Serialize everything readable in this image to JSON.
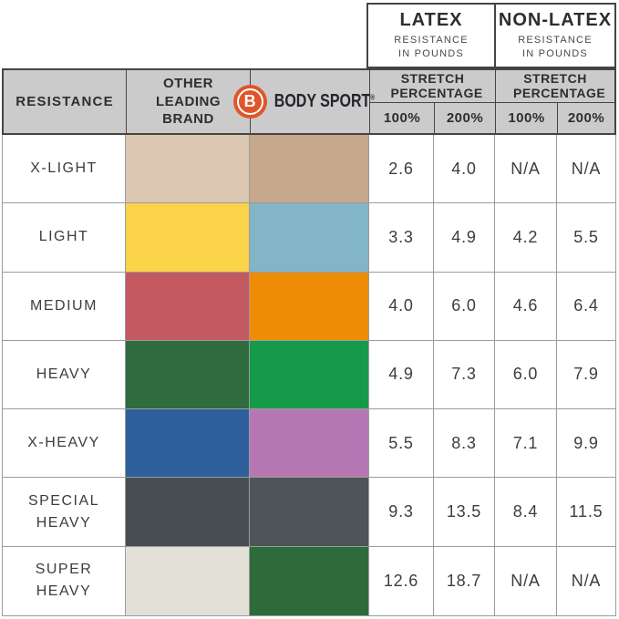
{
  "header": {
    "latex": {
      "title": "LATEX",
      "subtitle": "RESISTANCE IN POUNDS"
    },
    "non_latex": {
      "title": "NON-LATEX",
      "subtitle": "RESISTANCE IN POUNDS"
    },
    "resistance_label": "RESISTANCE",
    "other_brand_label": "OTHER LEADING BRAND",
    "brand": {
      "name": "BODY SPORT",
      "trademark": "®",
      "logo_letter": "B",
      "logo_color": "#e0552a"
    },
    "stretch_label": "STRETCH PERCENTAGE",
    "percent_cols": [
      "100%",
      "200%"
    ]
  },
  "colors": {
    "header_bg": "#cbcbcb",
    "header_border": "#454545",
    "grid_line": "#9c9c9c",
    "text": "#3d3d3d",
    "brand_orange": "#e0552a"
  },
  "rows": [
    {
      "label": "X-LIGHT",
      "other_color": "#dcc7b3",
      "bodysport_color": "#c6a88c",
      "values": [
        "2.6",
        "4.0",
        "N/A",
        "N/A"
      ]
    },
    {
      "label": "LIGHT",
      "other_color": "#fbd348",
      "bodysport_color": "#82b5c6",
      "values": [
        "3.3",
        "4.9",
        "4.2",
        "5.5"
      ]
    },
    {
      "label": "MEDIUM",
      "other_color": "#c45a61",
      "bodysport_color": "#ee8c05",
      "values": [
        "4.0",
        "6.0",
        "4.6",
        "6.4"
      ]
    },
    {
      "label": "HEAVY",
      "other_color": "#2e6b3d",
      "bodysport_color": "#169a49",
      "values": [
        "4.9",
        "7.3",
        "6.0",
        "7.9"
      ]
    },
    {
      "label": "X-HEAVY",
      "other_color": "#30609b",
      "bodysport_color": "#b678b4",
      "values": [
        "5.5",
        "8.3",
        "7.1",
        "9.9"
      ]
    },
    {
      "label": "SPECIAL HEAVY",
      "other_color": "#474e53",
      "bodysport_color": "#4e5458",
      "values": [
        "9.3",
        "13.5",
        "8.4",
        "11.5"
      ]
    },
    {
      "label": "SUPER HEAVY",
      "other_color": "#e3e0d7",
      "bodysport_color": "#2e6b3a",
      "values": [
        "12.6",
        "18.7",
        "N/A",
        "N/A"
      ]
    }
  ],
  "chart_data": {
    "type": "table",
    "title": "Resistance band comparison: Body Sport vs Other Leading Brand",
    "columns": [
      "RESISTANCE",
      "OTHER LEADING BRAND",
      "BODY SPORT",
      "LATEX 100%",
      "LATEX 200%",
      "NON-LATEX 100%",
      "NON-LATEX 200%"
    ],
    "units": "RESISTANCE IN POUNDS at STRETCH PERCENTAGE",
    "rows": [
      [
        "X-LIGHT",
        "swatch #dcc7b3",
        "swatch #c6a88c",
        "2.6",
        "4.0",
        "N/A",
        "N/A"
      ],
      [
        "LIGHT",
        "swatch #fbd348",
        "swatch #82b5c6",
        "3.3",
        "4.9",
        "4.2",
        "5.5"
      ],
      [
        "MEDIUM",
        "swatch #c45a61",
        "swatch #ee8c05",
        "4.0",
        "6.0",
        "4.6",
        "6.4"
      ],
      [
        "HEAVY",
        "swatch #2e6b3d",
        "swatch #169a49",
        "4.9",
        "7.3",
        "6.0",
        "7.9"
      ],
      [
        "X-HEAVY",
        "swatch #30609b",
        "swatch #b678b4",
        "5.5",
        "8.3",
        "7.1",
        "9.9"
      ],
      [
        "SPECIAL HEAVY",
        "swatch #474e53",
        "swatch #4e5458",
        "9.3",
        "13.5",
        "8.4",
        "11.5"
      ],
      [
        "SUPER HEAVY",
        "swatch #e3e0d7",
        "swatch #2e6b3a",
        "12.6",
        "18.7",
        "N/A",
        "N/A"
      ]
    ]
  }
}
